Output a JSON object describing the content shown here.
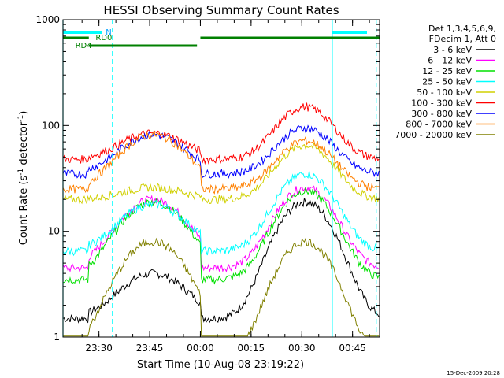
{
  "chart_data": {
    "type": "line",
    "title": "HESSI Observing Summary Count Rates",
    "xlabel": "Start Time (10-Aug-08 23:19:22)",
    "ylabel_main": "Count Rate (s",
    "ylabel_sup1": "-1",
    "ylabel_mid": " detector",
    "ylabel_sup2": "-1",
    "ylabel_end": ")",
    "y_scale": "log",
    "ylim": [
      1,
      1000
    ],
    "x_range_minutes": [
      "23:19:22",
      "00:53:00"
    ],
    "x_ticks": [
      "23:30",
      "23:45",
      "00:00",
      "00:15",
      "00:30",
      "00:45"
    ],
    "y_ticks": [
      "1",
      "10",
      "100",
      "1000"
    ],
    "legend_header": [
      "Det 1,3,4,5,6,9,",
      "FDecim 1, Att 0"
    ],
    "legend_position": "right",
    "series": [
      {
        "name": "3 - 6 keV",
        "color": "#000000"
      },
      {
        "name": "6 - 12 keV",
        "color": "#ff00ff"
      },
      {
        "name": "12 - 25 keV",
        "color": "#00e000"
      },
      {
        "name": "25 - 50 keV",
        "color": "#00ffff"
      },
      {
        "name": "50 - 100 keV",
        "color": "#d0d000"
      },
      {
        "name": "100 - 300 keV",
        "color": "#ff0000"
      },
      {
        "name": "300 - 800 keV",
        "color": "#0000ff"
      },
      {
        "name": "800 - 7000 keV",
        "color": "#ff8000"
      },
      {
        "name": "7000 - 20000 keV",
        "color": "#808000"
      }
    ],
    "annotations": {
      "n_label": "N",
      "rd0_label": "RD0",
      "rd4_label": "RD4"
    },
    "timestamp": "15-Dec-2009 20:28"
  }
}
